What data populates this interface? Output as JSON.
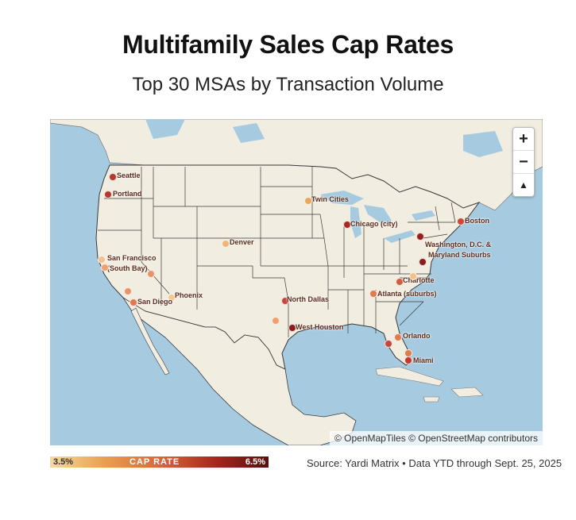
{
  "title": "Multifamily Sales Cap Rates",
  "subtitle": "Top 30 MSAs by Transaction Volume",
  "map": {
    "zoom_in": "+",
    "zoom_out": "−",
    "reset_north": "▲",
    "attribution": "© OpenMapTiles © OpenStreetMap contributors",
    "colors": {
      "water": "#a6cbe0",
      "land": "#f1ede1",
      "border": "#3a3a3a"
    }
  },
  "markers": [
    {
      "label": "Seattle",
      "color": "#b33a2e"
    },
    {
      "label": "Portland",
      "color": "#b33a2e"
    },
    {
      "label": "Twin Cities",
      "color": "#e9a65e"
    },
    {
      "label": "Chicago (city)",
      "color": "#a8281e"
    },
    {
      "label": "Boston",
      "color": "#c9483a"
    },
    {
      "label": "Denver",
      "color": "#f0b676"
    },
    {
      "label": "Washington, D.C. &",
      "color": "#9a1e1e"
    },
    {
      "label": "Maryland Suburbs",
      "color": null
    },
    {
      "label": "San Francisco",
      "color": "#f2c08a"
    },
    {
      "label": "(South Bay)",
      "color": null
    },
    {
      "label": "Charlotte",
      "color": "#d25c40"
    },
    {
      "label": "Phoenix",
      "color": "#f3c88f"
    },
    {
      "label": "Atlanta (suburbs)",
      "color": "#e07b4a"
    },
    {
      "label": "San Diego",
      "color": "#e07850"
    },
    {
      "label": "North Dallas",
      "color": "#c4473a"
    },
    {
      "label": "West Houston",
      "color": "#8c1c1c"
    },
    {
      "label": "Orlando",
      "color": "#e07b4a"
    },
    {
      "label": "Miami",
      "color": "#c23a2e"
    }
  ],
  "legend": {
    "min": "3.5%",
    "label": "CAP RATE",
    "max": "6.5%"
  },
  "source": "Source: Yardi Matrix • Data YTD through Sept. 25, 2025"
}
